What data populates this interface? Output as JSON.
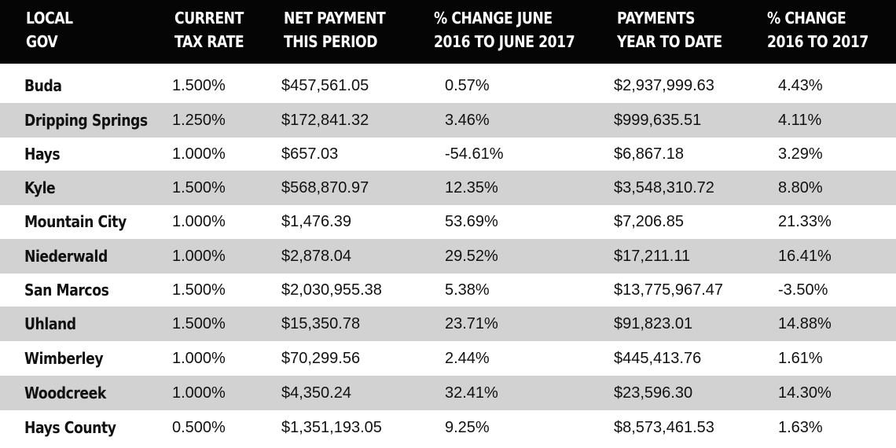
{
  "table": {
    "headers": [
      [
        "LOCAL",
        "GOV"
      ],
      [
        "CURRENT",
        "TAX RATE"
      ],
      [
        "NET PAYMENT",
        "THIS PERIOD"
      ],
      [
        "% CHANGE JUNE",
        "2016 TO JUNE 2017"
      ],
      [
        "PAYMENTS",
        "YEAR TO DATE"
      ],
      [
        "% CHANGE",
        "2016 TO 2017"
      ]
    ],
    "rows": [
      [
        "Buda",
        "1.500%",
        "$457,561.05",
        "0.57%",
        "$2,937,999.63",
        "4.43%"
      ],
      [
        "Dripping Springs",
        "1.250%",
        "$172,841.32",
        "3.46%",
        "$999,635.51",
        "4.11%"
      ],
      [
        "Hays",
        "1.000%",
        "$657.03",
        "-54.61%",
        "$6,867.18",
        "3.29%"
      ],
      [
        "Kyle",
        "1.500%",
        "$568,870.97",
        "12.35%",
        "$3,548,310.72",
        "8.80%"
      ],
      [
        "Mountain City",
        "1.000%",
        "$1,476.39",
        "53.69%",
        "$7,206.85",
        "21.33%"
      ],
      [
        "Niederwald",
        "1.000%",
        "$2,878.04",
        "29.52%",
        "$17,211.11",
        "16.41%"
      ],
      [
        "San Marcos",
        "1.500%",
        "$2,030,955.38",
        "5.38%",
        "$13,775,967.47",
        "-3.50%"
      ],
      [
        "Uhland",
        "1.500%",
        "$15,350.78",
        "23.71%",
        "$91,823.01",
        "14.88%"
      ],
      [
        "Wimberley",
        "1.000%",
        "$70,299.56",
        "2.44%",
        "$445,413.76",
        "1.61%"
      ],
      [
        "Woodcreek",
        "1.000%",
        "$4,350.24",
        "32.41%",
        "$23,596.30",
        "14.30%"
      ],
      [
        "Hays County",
        "0.500%",
        "$1,351,193.05",
        "9.25%",
        "$8,573,461.53",
        "1.63%"
      ]
    ]
  },
  "colors": {
    "header_background": "#050505",
    "header_text": "#ffffff",
    "shaded_row": "#d2d2d2",
    "body_text": "#111111"
  }
}
